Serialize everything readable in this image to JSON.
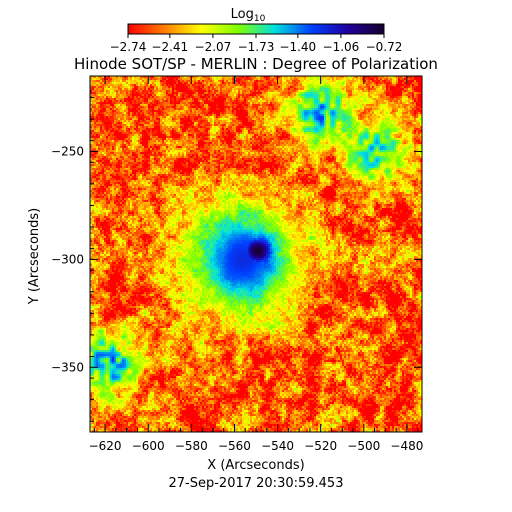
{
  "chart_data": {
    "type": "heatmap",
    "title": "Hinode SOT/SP - MERLIN : Degree of Polarization",
    "colorbar": {
      "label": "Log",
      "label_subscript": "10",
      "ticks": [
        "-2.74",
        "-2.41",
        "-2.07",
        "-1.73",
        "-1.40",
        "-1.06",
        "-0.72"
      ],
      "range": [
        -2.74,
        -0.72
      ],
      "colors": [
        "#ff0000",
        "#ff7f00",
        "#ffff00",
        "#7fff00",
        "#00e0e0",
        "#0040ff",
        "#2000a0",
        "#160028"
      ]
    },
    "xlabel": "X (Arcseconds)",
    "ylabel": "Y (Arcseconds)",
    "xlim": [
      -627,
      -473
    ],
    "ylim": [
      -380,
      -215
    ],
    "x_ticks": [
      -620,
      -600,
      -580,
      -560,
      -540,
      -520,
      -500,
      -480
    ],
    "y_ticks": [
      -250,
      -300,
      -350
    ],
    "features": [
      {
        "kind": "sunspot_umbra",
        "x": -549,
        "y": -296,
        "level": -0.75
      },
      {
        "kind": "sunspot_penumbra",
        "x": -556,
        "y": -300,
        "level": -1.2
      },
      {
        "kind": "plage",
        "x": -520,
        "y": -232,
        "level": -1.5
      },
      {
        "kind": "plage",
        "x": -618,
        "y": -348,
        "level": -1.5
      },
      {
        "kind": "plage",
        "x": -494,
        "y": -250,
        "level": -1.6
      }
    ],
    "timestamp": "27-Sep-2017 20:30:59.453"
  }
}
